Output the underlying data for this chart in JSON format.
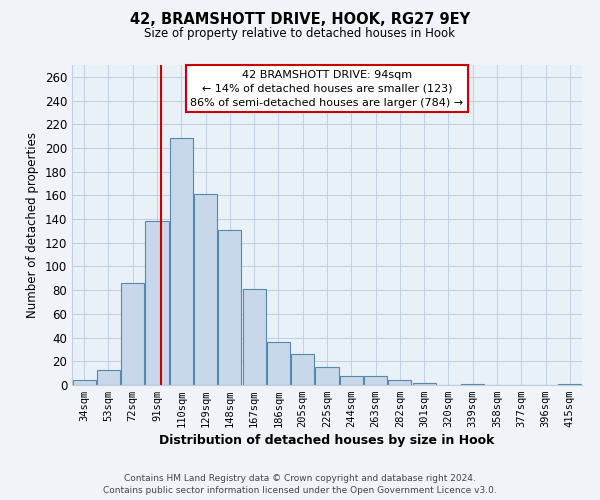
{
  "title": "42, BRAMSHOTT DRIVE, HOOK, RG27 9EY",
  "subtitle": "Size of property relative to detached houses in Hook",
  "xlabel": "Distribution of detached houses by size in Hook",
  "ylabel": "Number of detached properties",
  "bar_color": "#c8d8ea",
  "bar_edge_color": "#5588aa",
  "categories": [
    "34sqm",
    "53sqm",
    "72sqm",
    "91sqm",
    "110sqm",
    "129sqm",
    "148sqm",
    "167sqm",
    "186sqm",
    "205sqm",
    "225sqm",
    "244sqm",
    "263sqm",
    "282sqm",
    "301sqm",
    "320sqm",
    "339sqm",
    "358sqm",
    "377sqm",
    "396sqm",
    "415sqm"
  ],
  "values": [
    4,
    13,
    86,
    138,
    208,
    161,
    131,
    81,
    36,
    26,
    15,
    8,
    8,
    4,
    2,
    0,
    1,
    0,
    0,
    0,
    1
  ],
  "ylim": [
    0,
    270
  ],
  "yticks": [
    0,
    20,
    40,
    60,
    80,
    100,
    120,
    140,
    160,
    180,
    200,
    220,
    240,
    260
  ],
  "property_index": 3.72,
  "property_label": "42 BRAMSHOTT DRIVE: 94sqm",
  "annotation_line1": "← 14% of detached houses are smaller (123)",
  "annotation_line2": "86% of semi-detached houses are larger (784) →",
  "annotation_box_color": "#ffffff",
  "annotation_box_edge": "#cc0000",
  "vertical_line_color": "#cc0000",
  "background_color": "#f0f4f8",
  "plot_bg_color": "#e8f0f8",
  "grid_color": "#c0cfe0",
  "footer_line1": "Contains HM Land Registry data © Crown copyright and database right 2024.",
  "footer_line2": "Contains public sector information licensed under the Open Government Licence v3.0."
}
